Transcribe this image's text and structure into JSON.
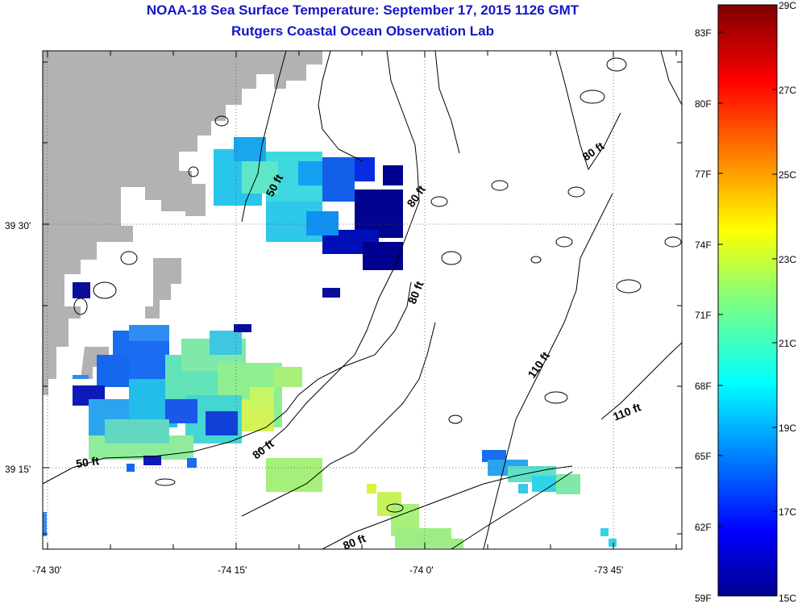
{
  "title": "NOAA-18 Sea Surface Temperature:  September 17, 2015 1126 GMT",
  "subtitle": "Rutgers Coastal Ocean Observation Lab",
  "axes": {
    "lon_ticks": [
      "-74 30'",
      "-74 15'",
      "-74 0'",
      "-73 45'"
    ],
    "lat_ticks": [
      "39 30'",
      "39 15'"
    ]
  },
  "contour_labels": [
    "50 ft",
    "80 ft",
    "80 ft",
    "80 ft",
    "110 ft",
    "110 ft",
    "50 ft",
    "80 ft",
    "80 ft"
  ],
  "colorbar": {
    "fahrenheit": [
      "83F",
      "80F",
      "77F",
      "74F",
      "71F",
      "68F",
      "65F",
      "62F",
      "59F"
    ],
    "celsius": [
      "29C",
      "27C",
      "25C",
      "23C",
      "21C",
      "19C",
      "17C",
      "15C"
    ],
    "range_c": [
      15,
      29
    ]
  },
  "colors": {
    "title": "#1515c8",
    "land": "#b2b2b2",
    "contour": "#000000"
  }
}
